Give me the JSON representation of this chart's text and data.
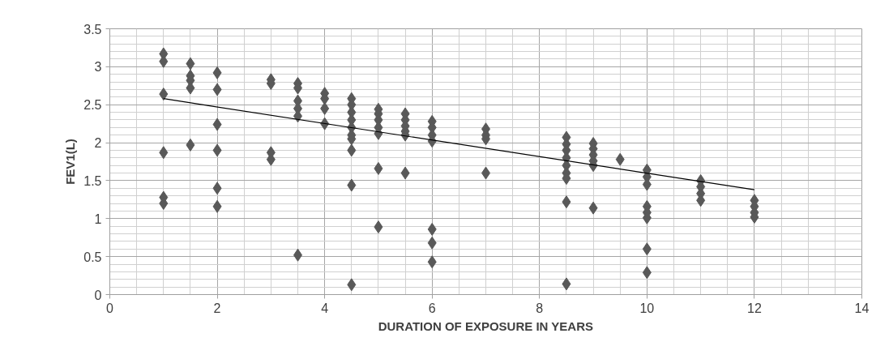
{
  "chart_data": {
    "type": "scatter",
    "xlabel": "DURATION OF EXPOSURE IN YEARS",
    "ylabel": "FEV1(L)",
    "xlim": [
      0,
      14
    ],
    "xticks": [
      0,
      2,
      4,
      6,
      8,
      10,
      12,
      14
    ],
    "ylim": [
      0,
      3.5
    ],
    "yticks": [
      0,
      0.5,
      1,
      1.5,
      2,
      2.5,
      3,
      3.5
    ],
    "grid": true,
    "series": [
      {
        "color": "#595959",
        "marker": "diamond",
        "x": [
          1,
          1,
          1,
          1,
          1,
          1,
          1.5,
          1.5,
          1.5,
          1.5,
          1.5,
          2,
          2,
          2,
          2,
          2,
          2,
          3,
          3,
          3,
          3,
          3.5,
          3.5,
          3.5,
          3.5,
          3.5,
          3.5,
          4,
          4,
          4,
          4,
          4.5,
          4.5,
          4.5,
          4.5,
          4.5,
          4.5,
          4.5,
          4.5,
          4.5,
          4.5,
          5,
          5,
          5,
          5,
          5,
          5,
          5,
          5.5,
          5.5,
          5.5,
          5.5,
          5.5,
          5.5,
          6,
          6,
          6,
          6,
          6,
          6,
          6,
          7,
          7,
          7,
          7,
          8.5,
          8.5,
          8.5,
          8.5,
          8.5,
          8.5,
          8.5,
          8.5,
          8.5,
          9,
          9,
          9,
          9,
          9,
          9,
          9.5,
          10,
          10,
          10,
          10,
          10,
          10,
          10,
          10,
          11,
          11,
          11,
          11,
          12,
          12,
          12,
          12
        ],
        "values": [
          3.17,
          3.07,
          2.64,
          1.87,
          1.28,
          1.2,
          3.04,
          2.88,
          2.82,
          2.72,
          1.97,
          2.92,
          2.7,
          2.24,
          1.9,
          1.4,
          1.16,
          2.83,
          2.78,
          1.87,
          1.78,
          2.78,
          2.72,
          2.55,
          2.45,
          2.35,
          0.52,
          2.65,
          2.58,
          2.45,
          2.25,
          2.58,
          2.5,
          2.4,
          2.3,
          2.2,
          2.1,
          2.05,
          1.9,
          1.44,
          0.13,
          2.44,
          2.38,
          2.3,
          2.2,
          2.12,
          1.66,
          0.89,
          2.38,
          2.3,
          2.22,
          2.15,
          2.1,
          1.6,
          2.28,
          2.2,
          2.1,
          2.02,
          0.86,
          0.68,
          0.43,
          2.18,
          2.1,
          2.05,
          1.6,
          2.07,
          1.98,
          1.9,
          1.8,
          1.7,
          1.6,
          1.53,
          1.22,
          0.14,
          1.99,
          1.92,
          1.84,
          1.76,
          1.7,
          1.14,
          1.78,
          1.64,
          1.55,
          1.45,
          1.16,
          1.08,
          1.01,
          0.6,
          0.29,
          1.5,
          1.42,
          1.33,
          1.24,
          1.24,
          1.16,
          1.08,
          1.02
        ]
      },
      {
        "type": "line",
        "color": "#000000",
        "line_style": "solid",
        "x": [
          1,
          12
        ],
        "values": [
          2.58,
          1.38
        ]
      }
    ]
  }
}
